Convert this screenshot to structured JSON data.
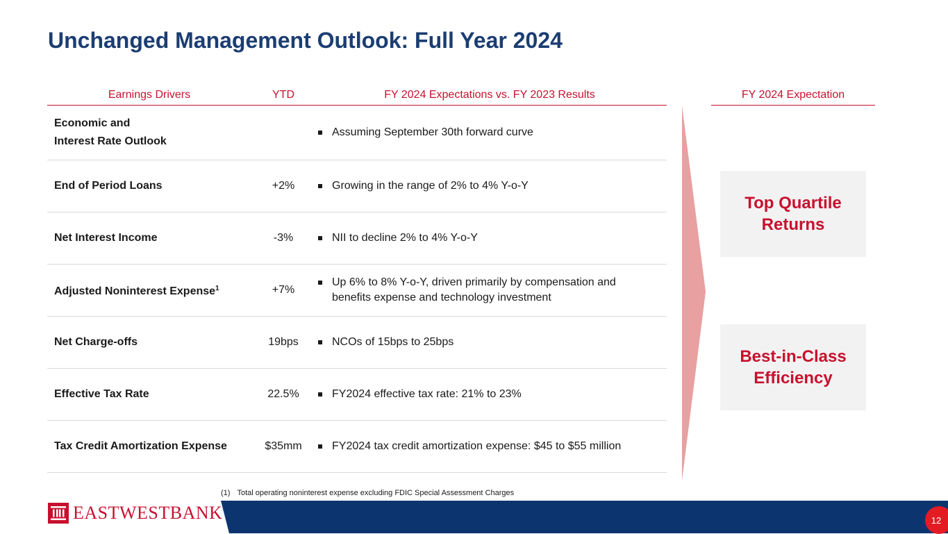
{
  "title": "Unchanged Management Outlook: Full Year 2024",
  "headers": {
    "drivers": "Earnings Drivers",
    "ytd": "YTD",
    "expectations": "FY 2024 Expectations vs. FY 2023 Results",
    "fy_expectation": "FY 2024 Expectation"
  },
  "rows": [
    {
      "driver_line1": "Economic and",
      "driver_line2": "Interest Rate Outlook",
      "ytd": "",
      "expectation": "Assuming September 30th forward curve"
    },
    {
      "driver": "End of Period Loans",
      "ytd": "+2%",
      "expectation": "Growing in the range of 2% to 4% Y-o-Y"
    },
    {
      "driver": "Net Interest Income",
      "ytd": "-3%",
      "expectation": "NII to decline 2% to 4% Y-o-Y"
    },
    {
      "driver": "Adjusted Noninterest Expense",
      "footnote_ref": "1",
      "ytd": "+7%",
      "expectation": "Up 6% to 8% Y-o-Y, driven primarily by compensation and benefits expense and technology investment"
    },
    {
      "driver": "Net Charge-offs",
      "ytd": "19bps",
      "expectation": "NCOs of 15bps to 25bps"
    },
    {
      "driver": "Effective Tax Rate",
      "ytd": "22.5%",
      "expectation": "FY2024 effective tax rate: 21% to 23%"
    },
    {
      "driver": "Tax Credit Amortization Expense",
      "ytd": "$35mm",
      "expectation": "FY2024 tax credit amortization expense: $45 to $55 million"
    }
  ],
  "outcomes": {
    "box1_line1": "Top Quartile",
    "box1_line2": "Returns",
    "box2_line1": "Best-in-Class",
    "box2_line2": "Efficiency"
  },
  "footnote": {
    "number": "(1)",
    "text": "Total operating noninterest expense excluding FDIC Special Assessment Charges"
  },
  "logo": {
    "text": "EASTWESTBANK"
  },
  "page_number": "12",
  "colors": {
    "title": "#1b3d72",
    "accent": "#c8102e",
    "navy": "#0c3570",
    "arrow": "#e8a0a0",
    "box_bg": "#f2f2f2"
  }
}
